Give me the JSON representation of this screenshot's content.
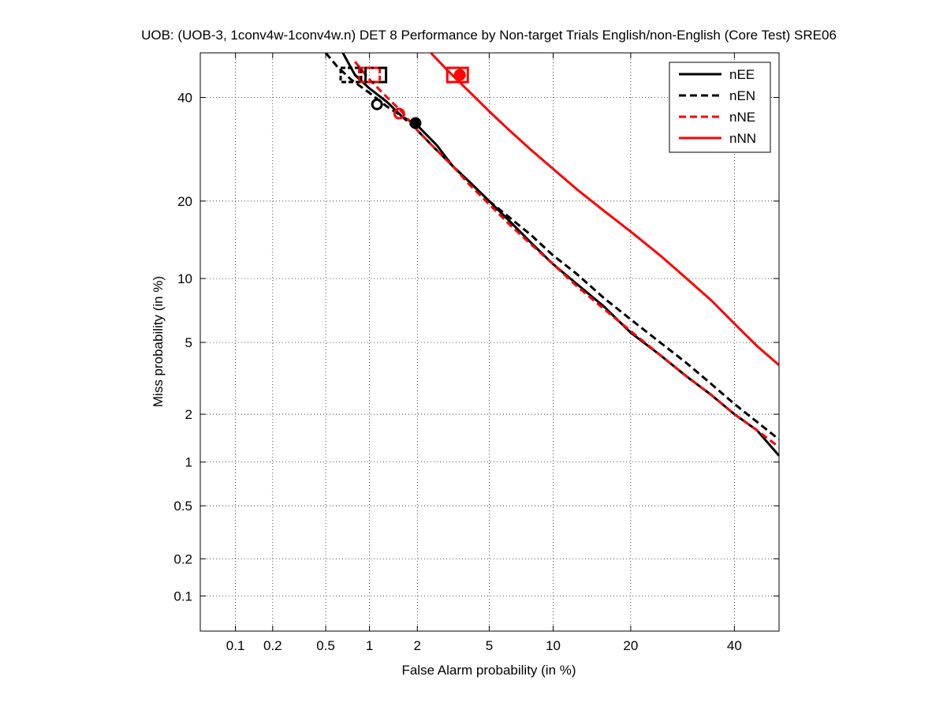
{
  "chart_data": {
    "type": "line",
    "title": "UOB: (UOB-3, 1conv4w-1conv4w.n) DET 8 Performance by Non-target Trials English/non-English (Core Test) SRE06",
    "xlabel": "False Alarm probability (in %)",
    "ylabel": "Miss probability (in %)",
    "x_scale": "probit",
    "y_scale": "probit",
    "xlim": [
      0.05,
      50
    ],
    "ylim": [
      0.05,
      50
    ],
    "x_ticks": [
      0.1,
      0.2,
      0.5,
      1,
      2,
      5,
      10,
      20,
      40
    ],
    "x_tick_labels": [
      "0.1",
      "0.2",
      "0.5",
      "1",
      "2",
      "5",
      "10",
      "20",
      "40"
    ],
    "y_ticks": [
      0.1,
      0.2,
      0.5,
      1,
      2,
      5,
      10,
      20,
      40
    ],
    "y_tick_labels": [
      "0.1",
      "0.2",
      "0.5",
      "1",
      "2",
      "5",
      "10",
      "20",
      "40"
    ],
    "grid": true,
    "legend_position": "top-right",
    "series": [
      {
        "name": "nEE",
        "color": "#000000",
        "dash": "solid",
        "x": [
          0.66,
          0.8,
          1.0,
          1.3,
          1.6,
          2.0,
          2.6,
          3.2,
          4.0,
          5.0,
          6.3,
          8.0,
          10,
          12.5,
          16,
          20,
          25,
          30,
          35,
          40,
          45,
          50
        ],
        "y": [
          50,
          45,
          42,
          39,
          36,
          34,
          30,
          26,
          23,
          20,
          17,
          14,
          11.5,
          9.5,
          7.5,
          5.6,
          4.3,
          3.3,
          2.6,
          2.0,
          1.6,
          1.1
        ],
        "min_dcf": {
          "x": 1.95,
          "y": 34.5
        },
        "act_dcf": {
          "x": 1.1,
          "y": 45
        }
      },
      {
        "name": "nEN",
        "color": "#000000",
        "dash": "dashed",
        "x": [
          0.5,
          0.6,
          0.75,
          1.0,
          1.3,
          1.6,
          2.0,
          2.6,
          3.2,
          4.0,
          5.0,
          6.3,
          8.0,
          10,
          12.5,
          16,
          20,
          25,
          30,
          35,
          40,
          45,
          50
        ],
        "y": [
          50,
          47,
          44,
          41,
          38,
          36,
          33,
          29,
          26,
          23,
          20,
          17.5,
          15,
          12.5,
          10.5,
          8.2,
          6.5,
          5.0,
          3.9,
          3.0,
          2.3,
          1.8,
          1.4
        ],
        "min_dcf": {
          "x": 1.12,
          "y": 38.5
        },
        "act_dcf": {
          "x": 0.75,
          "y": 45
        }
      },
      {
        "name": "nNE",
        "color": "#ff0000",
        "dash": "dashed",
        "x": [
          0.8,
          1.0,
          1.3,
          1.6,
          2.0,
          2.6,
          3.2,
          4.0,
          5.0,
          6.3,
          8.0,
          10,
          12.5,
          16,
          20,
          25,
          30,
          35,
          40,
          45,
          50
        ],
        "y": [
          48,
          44,
          40,
          37,
          33,
          29,
          26,
          22.5,
          19.5,
          16.5,
          13.8,
          11.5,
          9.3,
          7.3,
          5.7,
          4.3,
          3.3,
          2.6,
          2.0,
          1.6,
          1.25
        ],
        "min_dcf": {
          "x": 1.55,
          "y": 36.5
        },
        "act_dcf": {
          "x": 1.0,
          "y": 45
        }
      },
      {
        "name": "nNN",
        "color": "#ff0000",
        "dash": "solid",
        "x": [
          2.4,
          3.0,
          4.0,
          5.0,
          6.3,
          8.0,
          10,
          12.5,
          16,
          20,
          25,
          30,
          35,
          40,
          45,
          50
        ],
        "y": [
          50,
          46,
          41,
          37,
          33,
          29,
          25.5,
          22,
          18.5,
          15.5,
          12.5,
          10.0,
          8.0,
          6.2,
          4.8,
          3.8
        ],
        "min_dcf": {
          "x": 3.5,
          "y": 45
        },
        "act_dcf": {
          "x": 3.4,
          "y": 45
        }
      }
    ]
  }
}
